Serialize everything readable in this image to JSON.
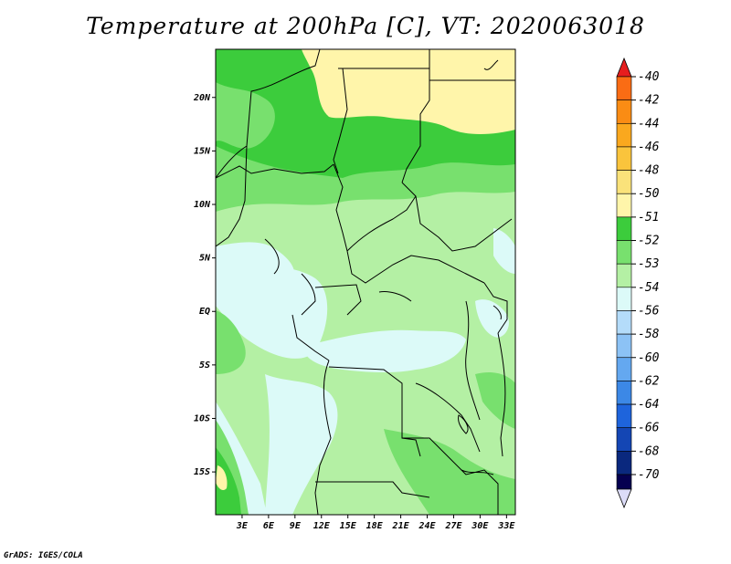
{
  "title": "Temperature at 200hPa [C], VT: 2020063018",
  "credit": "GrADS: IGES/COLA",
  "map": {
    "lon_range": [
      0,
      34
    ],
    "lat_range": [
      -19,
      24.5
    ],
    "lat_ticks": [
      {
        "value": 20,
        "label": "20N"
      },
      {
        "value": 15,
        "label": "15N"
      },
      {
        "value": 10,
        "label": "10N"
      },
      {
        "value": 5,
        "label": "5N"
      },
      {
        "value": 0,
        "label": "EQ"
      },
      {
        "value": -5,
        "label": "5S"
      },
      {
        "value": -10,
        "label": "10S"
      },
      {
        "value": -15,
        "label": "15S"
      }
    ],
    "lon_ticks": [
      {
        "value": 3,
        "label": "3E"
      },
      {
        "value": 6,
        "label": "6E"
      },
      {
        "value": 9,
        "label": "9E"
      },
      {
        "value": 12,
        "label": "12E"
      },
      {
        "value": 15,
        "label": "15E"
      },
      {
        "value": 18,
        "label": "18E"
      },
      {
        "value": 21,
        "label": "21E"
      },
      {
        "value": 24,
        "label": "24E"
      },
      {
        "value": 27,
        "label": "27E"
      },
      {
        "value": 30,
        "label": "30E"
      },
      {
        "value": 33,
        "label": "33E"
      }
    ]
  },
  "colorbar": {
    "levels": [
      {
        "label": "-40",
        "color": "#f0501e"
      },
      {
        "label": "-42",
        "color": "#fa6c14"
      },
      {
        "label": "-44",
        "color": "#fa8c14"
      },
      {
        "label": "-46",
        "color": "#faa81e"
      },
      {
        "label": "-48",
        "color": "#fac43c"
      },
      {
        "label": "-50",
        "color": "#fae27a"
      },
      {
        "label": "-51",
        "color": "#fff5aa"
      },
      {
        "label": "-52",
        "color": "#3ccc3c"
      },
      {
        "label": "-53",
        "color": "#78e06e"
      },
      {
        "label": "-54",
        "color": "#b4f0a4"
      },
      {
        "label": "-56",
        "color": "#dcfaf8"
      },
      {
        "label": "-58",
        "color": "#b4dcfa"
      },
      {
        "label": "-60",
        "color": "#8cc2f5"
      },
      {
        "label": "-62",
        "color": "#64a8f0"
      },
      {
        "label": "-64",
        "color": "#3c88e6"
      },
      {
        "label": "-66",
        "color": "#1e64dc"
      },
      {
        "label": "-68",
        "color": "#1446b4"
      },
      {
        "label": "-70",
        "color": "#0a287e"
      }
    ],
    "top_arrow_color": "#e61e1e",
    "bottom_arrow_color": "#dcdcf8",
    "bottom_box_color": "#050050"
  }
}
